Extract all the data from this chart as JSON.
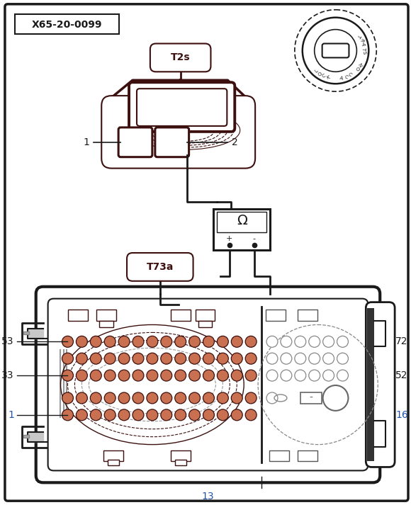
{
  "bg": "#ffffff",
  "dark": "#3d1010",
  "black": "#1a1a1a",
  "grey": "#555555",
  "blue": "#2255aa",
  "title": "X65-20-0099",
  "t2s": "T2s",
  "t73a": "T73a",
  "omega": "Ω",
  "lbl_left": [
    "53",
    "33",
    "1"
  ],
  "lbl_right": [
    "72",
    "52",
    "16"
  ],
  "lbl_bottom": "13",
  "pin1_t2s": "1",
  "pin2_t2s": "2"
}
